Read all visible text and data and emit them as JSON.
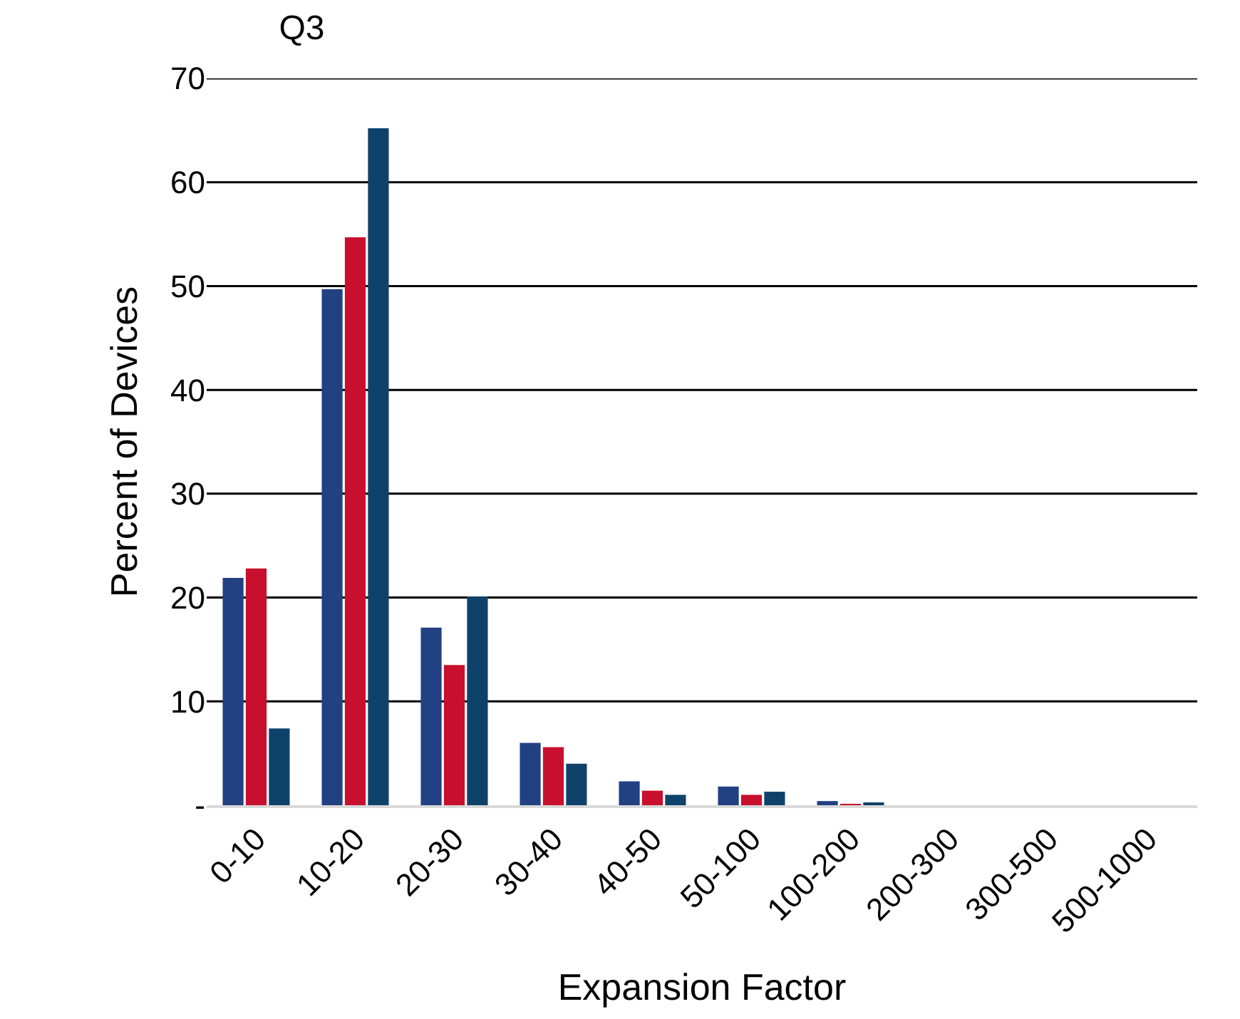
{
  "chart_data": {
    "type": "bar",
    "title": "Q3",
    "xlabel": "Expansion Factor",
    "ylabel": "Percent of Devices",
    "categories": [
      "0-10",
      "10-20",
      "20-30",
      "30-40",
      "40-50",
      "50-100",
      "100-200",
      "200-300",
      "300-500",
      "500-1000"
    ],
    "series": [
      {
        "color": "#214183",
        "values": [
          21.9,
          49.7,
          17.1,
          6.0,
          2.3,
          1.8,
          0.4,
          0,
          0,
          0
        ]
      },
      {
        "color": "#c8102e",
        "values": [
          22.8,
          54.7,
          13.5,
          5.6,
          1.4,
          1.0,
          0.1,
          0,
          0,
          0
        ]
      },
      {
        "color": "#0e426b",
        "values": [
          7.4,
          65.2,
          20.1,
          4.0,
          1.0,
          1.3,
          0.2,
          0,
          0,
          0
        ]
      }
    ],
    "ylim": [
      0,
      70
    ],
    "yticks": [
      {
        "value": 0,
        "label": "-"
      },
      10,
      20,
      30,
      40,
      50,
      60,
      70
    ],
    "grid": "y"
  }
}
